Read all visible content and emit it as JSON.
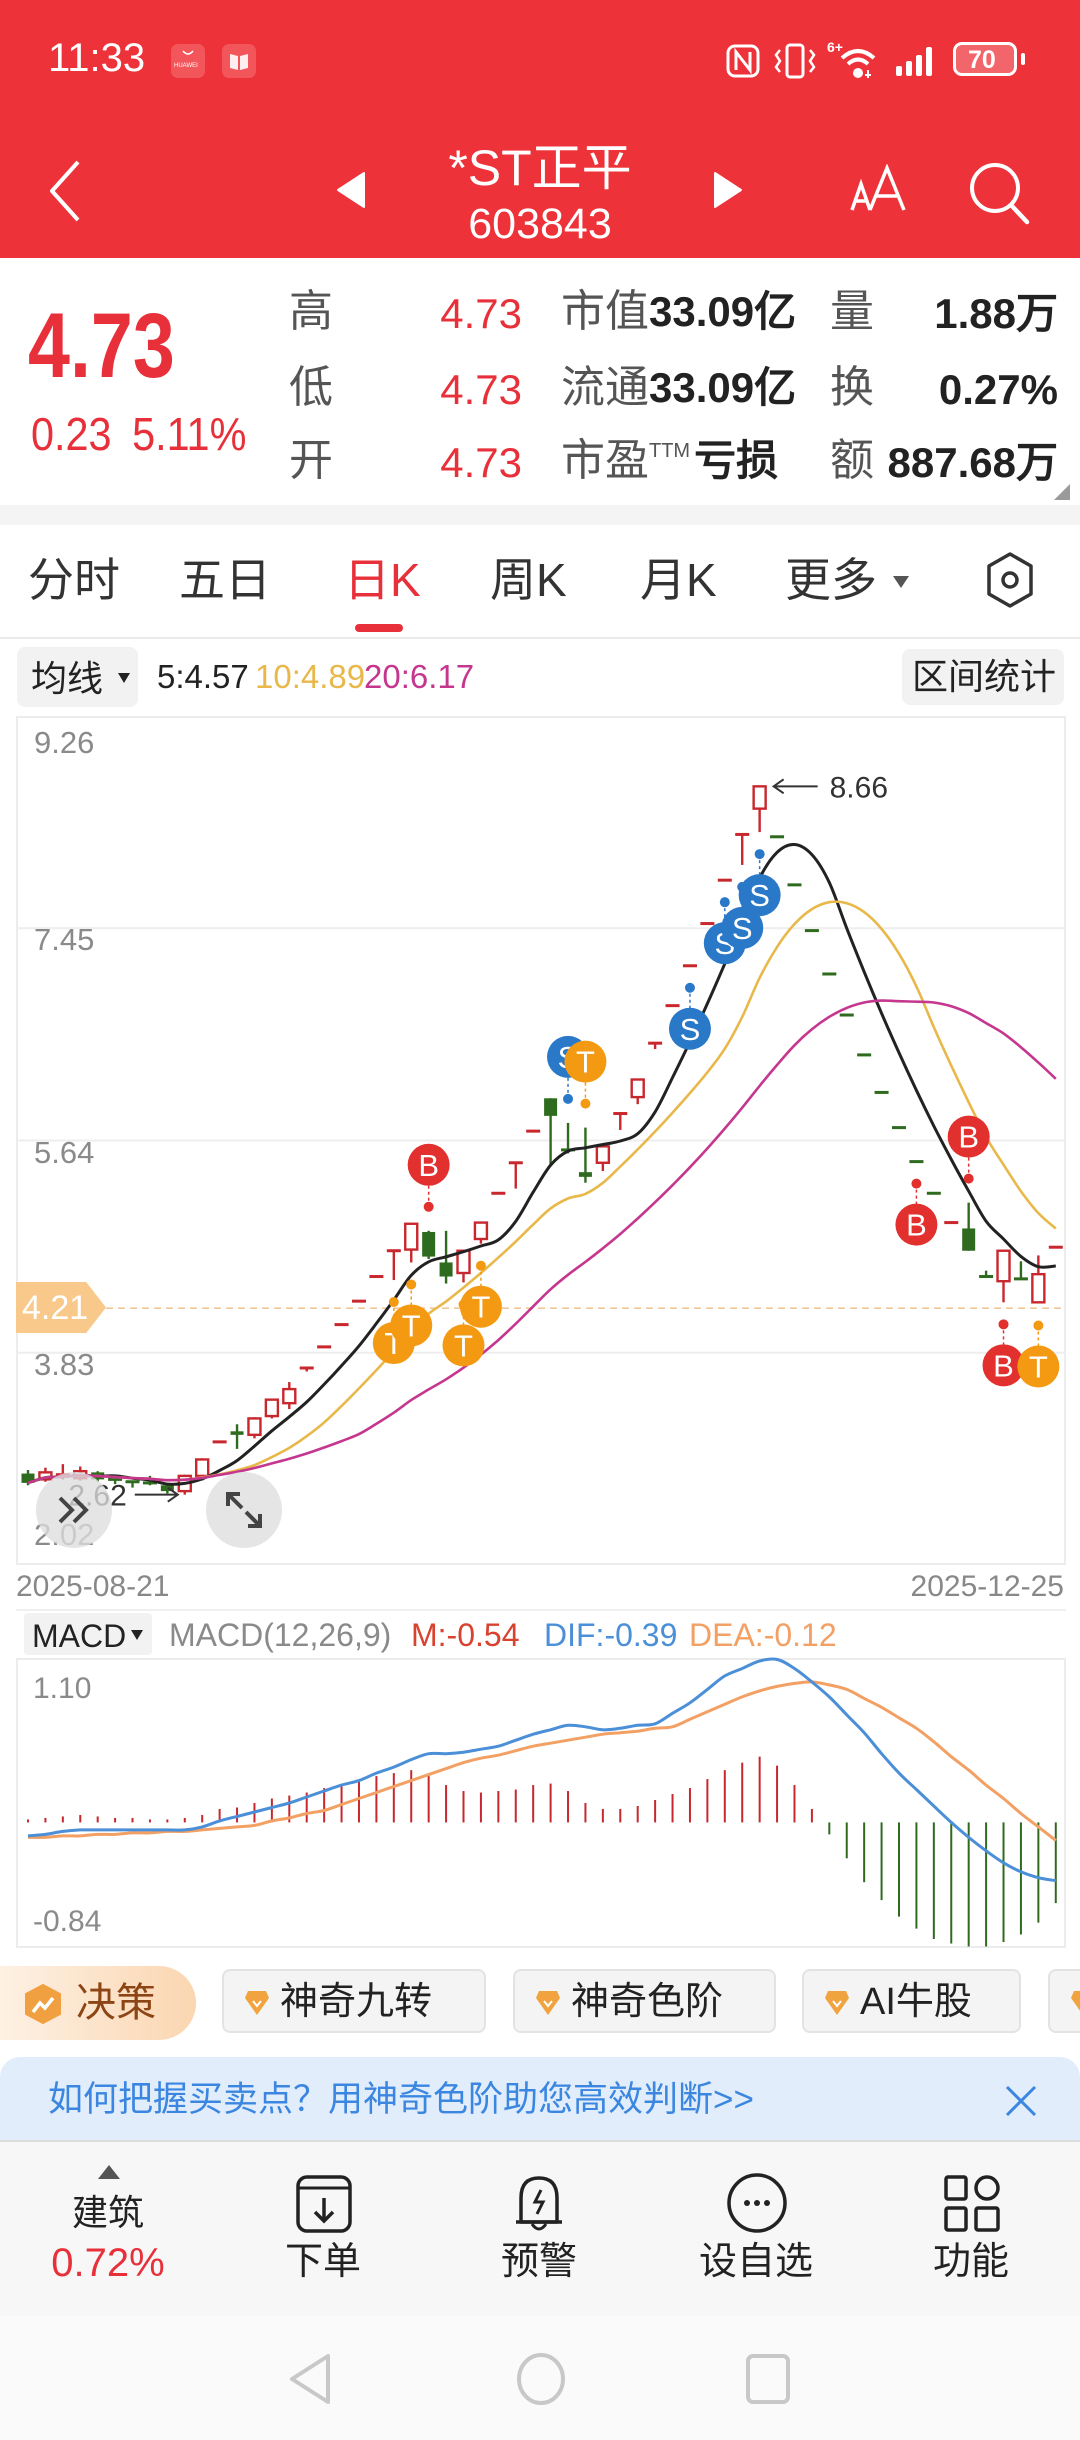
{
  "status_bar": {
    "time": "11:33",
    "notification_icons": [
      {
        "icon": "huawei-appgallery-icon",
        "text": "HUAWEI"
      },
      {
        "icon": "book-icon"
      }
    ],
    "network_label": "6+",
    "battery": "70"
  },
  "header": {
    "title": "*ST正平",
    "code": "603843"
  },
  "quote": {
    "price": "4.73",
    "change": "0.23",
    "change_pct": "5.11%",
    "rows": [
      {
        "label": "高",
        "value": "4.73",
        "m_label": "市值",
        "m_value": "33.09亿",
        "r_label": "量",
        "r_value": "1.88万"
      },
      {
        "label": "低",
        "value": "4.73",
        "m_label": "流通",
        "m_value": "33.09亿",
        "r_label": "换",
        "r_value": "0.27%"
      },
      {
        "label": "开",
        "value": "4.73",
        "m_label": "市盈",
        "m_sup": "TTM",
        "m_value": "亏损",
        "r_label": "额",
        "r_value": "887.68万"
      }
    ]
  },
  "tabs": [
    {
      "label": "分时"
    },
    {
      "label": "五日"
    },
    {
      "label": "日K",
      "active": true
    },
    {
      "label": "周K"
    },
    {
      "label": "月K"
    },
    {
      "label": "更多"
    }
  ],
  "ma_bar": {
    "selector": "均线",
    "ma5": "5:4.57",
    "ma10": "10:4.89",
    "ma20": "20:6.17",
    "range_stats": "区间统计"
  },
  "macd_bar": {
    "selector": "MACD"
  },
  "colors": {
    "brand_red": "#ee3239",
    "price_red": "#e8303a",
    "up": "#c8272d",
    "down": "#2f6b1f",
    "dif": "#4a8fd8",
    "dea": "#f2a063",
    "macd_m": "#d8432f"
  },
  "chart_data": [
    {
      "type": "candlestick",
      "title": "日K",
      "ylim": [
        2.02,
        9.26
      ],
      "y_ticks": [
        "9.26",
        "7.45",
        "5.64",
        "3.83",
        "2.02"
      ],
      "x_ticks": [
        "2025-08-21",
        "2025-12-25"
      ],
      "grid": true,
      "reference_line": {
        "value": "4.21"
      },
      "annotations": {
        "high": {
          "index": 42,
          "label": "8.66"
        },
        "low": {
          "index": 9,
          "label": "2.62"
        }
      },
      "moving_averages": [
        {
          "period": 5,
          "color": "#222222"
        },
        {
          "period": 10,
          "color": "#e8b84a"
        },
        {
          "period": 20,
          "color": "#c5368f"
        }
      ],
      "candle_format": [
        "open",
        "high",
        "low",
        "close",
        "direction"
      ],
      "candles": [
        [
          2.8,
          2.83,
          2.7,
          2.72,
          "d"
        ],
        [
          2.75,
          2.85,
          2.73,
          2.81,
          "u"
        ],
        [
          2.78,
          2.88,
          2.75,
          2.79,
          "u"
        ],
        [
          2.76,
          2.86,
          2.74,
          2.82,
          "u"
        ],
        [
          2.81,
          2.82,
          2.73,
          2.75,
          "d"
        ],
        [
          2.75,
          2.77,
          2.71,
          2.73,
          "d"
        ],
        [
          2.73,
          2.74,
          2.68,
          2.71,
          "d"
        ],
        [
          2.72,
          2.78,
          2.7,
          2.71,
          "d"
        ],
        [
          2.7,
          2.71,
          2.63,
          2.65,
          "d"
        ],
        [
          2.65,
          2.79,
          2.62,
          2.78,
          "u"
        ],
        [
          2.78,
          2.93,
          2.74,
          2.92,
          "u"
        ],
        [
          3.07,
          3.07,
          3.07,
          3.07,
          "u"
        ],
        [
          3.16,
          3.22,
          3.01,
          3.13,
          "d"
        ],
        [
          3.13,
          3.28,
          3.1,
          3.27,
          "u"
        ],
        [
          3.29,
          3.43,
          3.27,
          3.43,
          "u"
        ],
        [
          3.4,
          3.58,
          3.35,
          3.52,
          "u"
        ],
        [
          3.7,
          3.7,
          3.67,
          3.7,
          "u"
        ],
        [
          3.88,
          3.88,
          3.88,
          3.88,
          "u"
        ],
        [
          4.07,
          4.07,
          4.07,
          4.07,
          "u"
        ],
        [
          4.27,
          4.27,
          4.27,
          4.27,
          "u"
        ],
        [
          4.48,
          4.48,
          4.48,
          4.48,
          "u"
        ],
        [
          4.7,
          4.7,
          4.45,
          4.7,
          "u"
        ],
        [
          4.71,
          4.93,
          4.6,
          4.93,
          "u"
        ],
        [
          4.86,
          4.87,
          4.63,
          4.65,
          "d"
        ],
        [
          4.6,
          4.87,
          4.42,
          4.48,
          "d"
        ],
        [
          4.51,
          4.71,
          4.43,
          4.7,
          "u"
        ],
        [
          4.8,
          4.94,
          4.76,
          4.94,
          "u"
        ],
        [
          5.19,
          5.19,
          5.19,
          5.19,
          "u"
        ],
        [
          5.45,
          5.45,
          5.23,
          5.45,
          "u"
        ],
        [
          5.72,
          5.72,
          5.72,
          5.72,
          "u"
        ],
        [
          6.0,
          6.0,
          5.43,
          5.85,
          "d"
        ],
        [
          5.56,
          5.79,
          5.53,
          5.54,
          "d"
        ],
        [
          5.37,
          5.75,
          5.28,
          5.33,
          "d"
        ],
        [
          5.45,
          5.6,
          5.38,
          5.59,
          "u"
        ],
        [
          5.87,
          5.87,
          5.73,
          5.87,
          "u"
        ],
        [
          6.01,
          6.16,
          5.95,
          6.16,
          "u"
        ],
        [
          6.47,
          6.47,
          6.42,
          6.47,
          "u"
        ],
        [
          6.79,
          6.79,
          6.79,
          6.79,
          "u"
        ],
        [
          7.13,
          7.13,
          7.13,
          7.13,
          "u"
        ],
        [
          7.49,
          7.49,
          7.49,
          7.49,
          "u"
        ],
        [
          7.86,
          7.86,
          7.86,
          7.86,
          "u"
        ],
        [
          8.25,
          8.25,
          7.99,
          8.25,
          "u"
        ],
        [
          8.47,
          8.66,
          8.27,
          8.66,
          "u"
        ],
        [
          8.23,
          8.23,
          8.23,
          8.23,
          "d"
        ],
        [
          7.82,
          7.82,
          7.82,
          7.82,
          "d"
        ],
        [
          7.43,
          7.43,
          7.43,
          7.43,
          "d"
        ],
        [
          7.06,
          7.06,
          7.06,
          7.06,
          "d"
        ],
        [
          6.71,
          6.71,
          6.71,
          6.71,
          "d"
        ],
        [
          6.37,
          6.37,
          6.37,
          6.37,
          "d"
        ],
        [
          6.05,
          6.05,
          6.05,
          6.05,
          "d"
        ],
        [
          5.75,
          5.75,
          5.75,
          5.75,
          "d"
        ],
        [
          5.46,
          5.46,
          5.46,
          5.46,
          "d"
        ],
        [
          5.19,
          5.19,
          5.19,
          5.19,
          "d"
        ],
        [
          4.94,
          4.94,
          4.94,
          4.94,
          "u"
        ],
        [
          4.89,
          5.11,
          4.7,
          4.7,
          "d"
        ],
        [
          4.48,
          4.53,
          4.47,
          4.47,
          "d"
        ],
        [
          4.44,
          4.7,
          4.26,
          4.7,
          "u"
        ],
        [
          4.46,
          4.61,
          4.45,
          4.45,
          "d"
        ],
        [
          4.26,
          4.66,
          4.25,
          4.5,
          "u"
        ],
        [
          4.73,
          4.73,
          4.73,
          4.73,
          "u"
        ]
      ],
      "signal_colors": {
        "B": "#e2302f",
        "S": "#2a78c8",
        "T": "#f39a12"
      },
      "signals": [
        {
          "i": 21,
          "t": "T",
          "pos": "below"
        },
        {
          "i": 22,
          "t": "T",
          "pos": "below"
        },
        {
          "i": 23,
          "t": "B",
          "pos": "above"
        },
        {
          "i": 25,
          "t": "T",
          "pos": "below"
        },
        {
          "i": 26,
          "t": "T",
          "pos": "below"
        },
        {
          "i": 31,
          "t": "S",
          "pos": "above"
        },
        {
          "i": 32,
          "t": "T",
          "pos": "above"
        },
        {
          "i": 38,
          "t": "S",
          "pos": "below"
        },
        {
          "i": 40,
          "t": "S",
          "pos": "below"
        },
        {
          "i": 41,
          "t": "S",
          "pos": "below"
        },
        {
          "i": 42,
          "t": "S",
          "pos": "below"
        },
        {
          "i": 51,
          "t": "B",
          "pos": "below"
        },
        {
          "i": 54,
          "t": "B",
          "pos": "above"
        },
        {
          "i": 56,
          "t": "B",
          "pos": "below"
        },
        {
          "i": 58,
          "t": "T",
          "pos": "below"
        }
      ]
    },
    {
      "type": "bar",
      "title": "MACD(12,26,9)",
      "legend": {
        "params": "MACD(12,26,9)",
        "m": "M:-0.54",
        "dif": "DIF:-0.39",
        "dea": "DEA:-0.12"
      },
      "ylim": [
        -0.84,
        1.1
      ],
      "y_ticks": [
        "1.10",
        "-0.84"
      ],
      "histogram": [
        0.02,
        0.03,
        0.04,
        0.05,
        0.04,
        0.03,
        0.03,
        0.02,
        0.02,
        0.03,
        0.05,
        0.09,
        0.1,
        0.13,
        0.16,
        0.18,
        0.2,
        0.23,
        0.25,
        0.28,
        0.31,
        0.33,
        0.35,
        0.32,
        0.25,
        0.21,
        0.2,
        0.21,
        0.22,
        0.25,
        0.26,
        0.21,
        0.13,
        0.09,
        0.09,
        0.11,
        0.15,
        0.19,
        0.23,
        0.29,
        0.35,
        0.4,
        0.44,
        0.38,
        0.25,
        0.09,
        -0.08,
        -0.24,
        -0.4,
        -0.52,
        -0.63,
        -0.71,
        -0.78,
        -0.81,
        -0.83,
        -0.83,
        -0.8,
        -0.75,
        -0.67,
        -0.54
      ],
      "dif": [
        -0.09,
        -0.08,
        -0.06,
        -0.05,
        -0.05,
        -0.05,
        -0.05,
        -0.05,
        -0.05,
        -0.05,
        -0.03,
        0.01,
        0.04,
        0.07,
        0.1,
        0.13,
        0.17,
        0.21,
        0.25,
        0.28,
        0.33,
        0.37,
        0.42,
        0.46,
        0.46,
        0.47,
        0.49,
        0.51,
        0.55,
        0.59,
        0.62,
        0.65,
        0.64,
        0.62,
        0.63,
        0.65,
        0.66,
        0.73,
        0.8,
        0.89,
        0.98,
        1.03,
        1.08,
        1.09,
        1.03,
        0.94,
        0.84,
        0.72,
        0.6,
        0.46,
        0.33,
        0.22,
        0.11,
        0.0,
        -0.1,
        -0.19,
        -0.27,
        -0.33,
        -0.37,
        -0.39
      ],
      "dea": [
        -0.1,
        -0.1,
        -0.09,
        -0.09,
        -0.08,
        -0.08,
        -0.07,
        -0.07,
        -0.06,
        -0.06,
        -0.05,
        -0.04,
        -0.03,
        -0.02,
        0.01,
        0.03,
        0.06,
        0.08,
        0.12,
        0.16,
        0.2,
        0.24,
        0.28,
        0.32,
        0.36,
        0.4,
        0.43,
        0.45,
        0.48,
        0.51,
        0.53,
        0.55,
        0.57,
        0.59,
        0.6,
        0.61,
        0.63,
        0.64,
        0.69,
        0.74,
        0.79,
        0.84,
        0.88,
        0.91,
        0.93,
        0.94,
        0.92,
        0.89,
        0.83,
        0.77,
        0.7,
        0.63,
        0.54,
        0.44,
        0.35,
        0.25,
        0.16,
        0.06,
        -0.03,
        -0.12
      ]
    }
  ],
  "features": {
    "decision": "决策",
    "items": [
      {
        "label": "神奇九转"
      },
      {
        "label": "神奇色阶"
      },
      {
        "label": "AI牛股"
      }
    ]
  },
  "banner": {
    "text": "如何把握买卖点？用神奇色阶助您高效判断>>"
  },
  "bottom_nav": {
    "sector": {
      "name": "建筑",
      "change": "0.72%"
    },
    "items": [
      {
        "label": "下单",
        "icon": "order-icon"
      },
      {
        "label": "预警",
        "icon": "bell-icon"
      },
      {
        "label": "设自选",
        "icon": "add-watchlist-icon"
      },
      {
        "label": "功能",
        "icon": "grid-icon"
      }
    ]
  }
}
